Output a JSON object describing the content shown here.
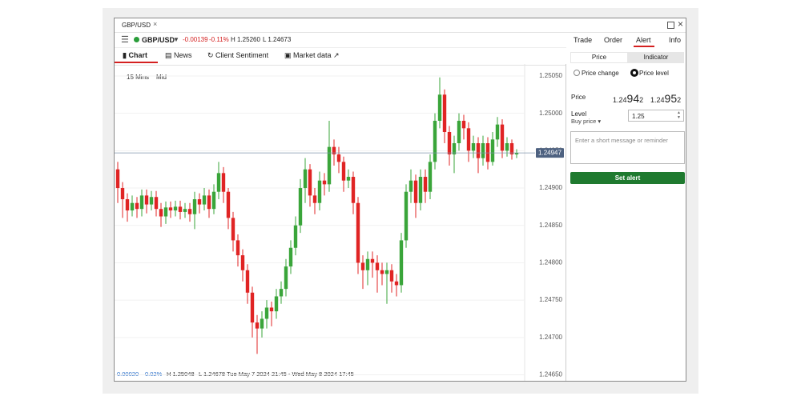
{
  "window": {
    "tab": "GBP/USD"
  },
  "instrument": {
    "name": "GBP/USD",
    "change": "-0.00139",
    "change_pct": "-0.11%",
    "high": "H 1.25260",
    "low": "L 1.24673"
  },
  "top_tabs": [
    "Trade",
    "Order",
    "Alert",
    "Info"
  ],
  "chart_tabs": [
    "Chart",
    "News",
    "Client Sentiment",
    "Market data"
  ],
  "chart_data": {
    "type": "candlestick",
    "interval": "15 Mins",
    "price_mode": "Mid",
    "up_color": "#3aa53a",
    "down_color": "#e02424",
    "grid": true,
    "ylim": [
      1.24642,
      1.25066
    ],
    "yticks": [
      {
        "value": 1.2505,
        "label": "1.25050"
      },
      {
        "value": 1.25,
        "label": "1.25000"
      },
      {
        "value": 1.2495,
        "label": "1.24950"
      },
      {
        "value": 1.249,
        "label": "1.24900"
      },
      {
        "value": 1.2485,
        "label": "1.24850"
      },
      {
        "value": 1.248,
        "label": "1.24800"
      },
      {
        "value": 1.2475,
        "label": "1.24750"
      },
      {
        "value": 1.247,
        "label": "1.24700"
      },
      {
        "value": 1.2465,
        "label": "1.24650"
      }
    ],
    "current_price": 1.24947,
    "open": [
      1.24925,
      1.249,
      1.24885,
      1.2487,
      1.2488,
      1.24872,
      1.2489,
      1.24878,
      1.24888,
      1.24872,
      1.24862,
      1.24874,
      1.2487,
      1.24875,
      1.24868,
      1.24872,
      1.24865,
      1.24885,
      1.24878,
      1.2489,
      1.24872,
      1.24895,
      1.2492,
      1.24895,
      1.2486,
      1.2483,
      1.2481,
      1.2479,
      1.2476,
      1.2472,
      1.24712,
      1.24725,
      1.2474,
      1.24735,
      1.24755,
      1.24765,
      1.24795,
      1.2482,
      1.2485,
      1.249,
      1.24925,
      1.2489,
      1.2488,
      1.2491,
      1.24905,
      1.24955,
      1.24945,
      1.24935,
      1.2491,
      1.24915,
      1.2488,
      1.248,
      1.2479,
      1.24805,
      1.248,
      1.2479,
      1.24785,
      1.2479,
      1.24775,
      1.2477,
      1.2483,
      1.24895,
      1.2491,
      1.2488,
      1.24915,
      1.24895,
      1.24935,
      1.2499,
      1.25025,
      1.24975,
      1.24945,
      1.2496,
      1.2499,
      1.2498,
      1.2495,
      1.2496,
      1.2494,
      1.2496,
      1.24935,
      1.24965,
      1.24985,
      1.2495,
      1.2496,
      1.24945
    ],
    "high": [
      1.24935,
      1.24908,
      1.24893,
      1.2489,
      1.24888,
      1.24898,
      1.24898,
      1.24896,
      1.24896,
      1.2488,
      1.24882,
      1.24882,
      1.24883,
      1.24883,
      1.2488,
      1.2488,
      1.24895,
      1.24893,
      1.249,
      1.24898,
      1.24905,
      1.24935,
      1.24928,
      1.249,
      1.24868,
      1.24838,
      1.24818,
      1.24798,
      1.24768,
      1.2473,
      1.24735,
      1.2475,
      1.24748,
      1.24765,
      1.24775,
      1.24805,
      1.2483,
      1.24862,
      1.24912,
      1.2494,
      1.24932,
      1.249,
      1.24922,
      1.2492,
      1.2499,
      1.24965,
      1.24955,
      1.24942,
      1.24925,
      1.24922,
      1.24888,
      1.2481,
      1.24815,
      1.24815,
      1.2481,
      1.248,
      1.248,
      1.24798,
      1.24785,
      1.2484,
      1.24905,
      1.24925,
      1.24918,
      1.24925,
      1.24925,
      1.24945,
      1.25,
      1.25048,
      1.25032,
      1.24983,
      1.2497,
      1.25,
      1.24998,
      1.24988,
      1.2497,
      1.24968,
      1.2497,
      1.24968,
      1.24975,
      1.24995,
      1.24992,
      1.24968,
      1.24965,
      1.24952
    ],
    "low": [
      1.2488,
      1.2486,
      1.24855,
      1.24862,
      1.2486,
      1.24862,
      1.24866,
      1.2487,
      1.24862,
      1.24848,
      1.24852,
      1.2486,
      1.24862,
      1.24858,
      1.2486,
      1.24855,
      1.24845,
      1.24866,
      1.2487,
      1.2486,
      1.24865,
      1.24885,
      1.2488,
      1.24845,
      1.24815,
      1.24795,
      1.24775,
      1.24745,
      1.247,
      1.24678,
      1.247,
      1.24712,
      1.24715,
      1.24725,
      1.24745,
      1.24755,
      1.24785,
      1.2481,
      1.2484,
      1.2488,
      1.24875,
      1.24865,
      1.2487,
      1.2489,
      1.24895,
      1.2493,
      1.2492,
      1.24895,
      1.249,
      1.24865,
      1.24785,
      1.24765,
      1.2477,
      1.2478,
      1.2476,
      1.2477,
      1.24745,
      1.2476,
      1.24755,
      1.2476,
      1.2482,
      1.2488,
      1.2486,
      1.2487,
      1.2488,
      1.24885,
      1.24925,
      1.2498,
      1.2496,
      1.2493,
      1.2492,
      1.2495,
      1.24965,
      1.24935,
      1.2494,
      1.2492,
      1.2493,
      1.24925,
      1.2493,
      1.24955,
      1.2494,
      1.24942,
      1.24938,
      1.2494
    ],
    "close": [
      1.249,
      1.24885,
      1.2487,
      1.2488,
      1.24872,
      1.2489,
      1.24878,
      1.24888,
      1.24872,
      1.24862,
      1.24874,
      1.2487,
      1.24875,
      1.24868,
      1.24872,
      1.24865,
      1.24885,
      1.24878,
      1.2489,
      1.24872,
      1.24895,
      1.2492,
      1.24895,
      1.2486,
      1.2483,
      1.2481,
      1.2479,
      1.2476,
      1.2472,
      1.24712,
      1.24725,
      1.2474,
      1.24735,
      1.24755,
      1.24765,
      1.24795,
      1.2482,
      1.2485,
      1.249,
      1.24925,
      1.2489,
      1.2488,
      1.2491,
      1.24905,
      1.24955,
      1.24945,
      1.24935,
      1.2491,
      1.24915,
      1.2488,
      1.248,
      1.2479,
      1.24805,
      1.248,
      1.2479,
      1.24785,
      1.2479,
      1.24775,
      1.2477,
      1.2483,
      1.24895,
      1.2491,
      1.2488,
      1.24915,
      1.24895,
      1.24935,
      1.2499,
      1.25025,
      1.24975,
      1.24945,
      1.2496,
      1.2499,
      1.2498,
      1.2495,
      1.2496,
      1.2494,
      1.2496,
      1.24935,
      1.24965,
      1.24985,
      1.2495,
      1.2496,
      1.24945,
      1.24947
    ],
    "footer": {
      "change": "0.00020",
      "change_pct": "0.02%",
      "high": "H 1.25048",
      "low": "L 1.24678",
      "range": "Tue May 7 2024 21:45 - Wed May 8 2024 17:45"
    }
  },
  "alert_panel": {
    "toggle": [
      "Price",
      "Indicator"
    ],
    "radios": [
      "Price change",
      "Price level"
    ],
    "price_label": "Price",
    "sell": [
      "1.24",
      "94",
      "2"
    ],
    "buy": [
      "1.24",
      "95",
      "2"
    ],
    "level_label": "Level",
    "level_type": "Buy price",
    "level_value": "1.25",
    "message_placeholder": "Enter a short message or reminder",
    "button": "Set alert"
  }
}
